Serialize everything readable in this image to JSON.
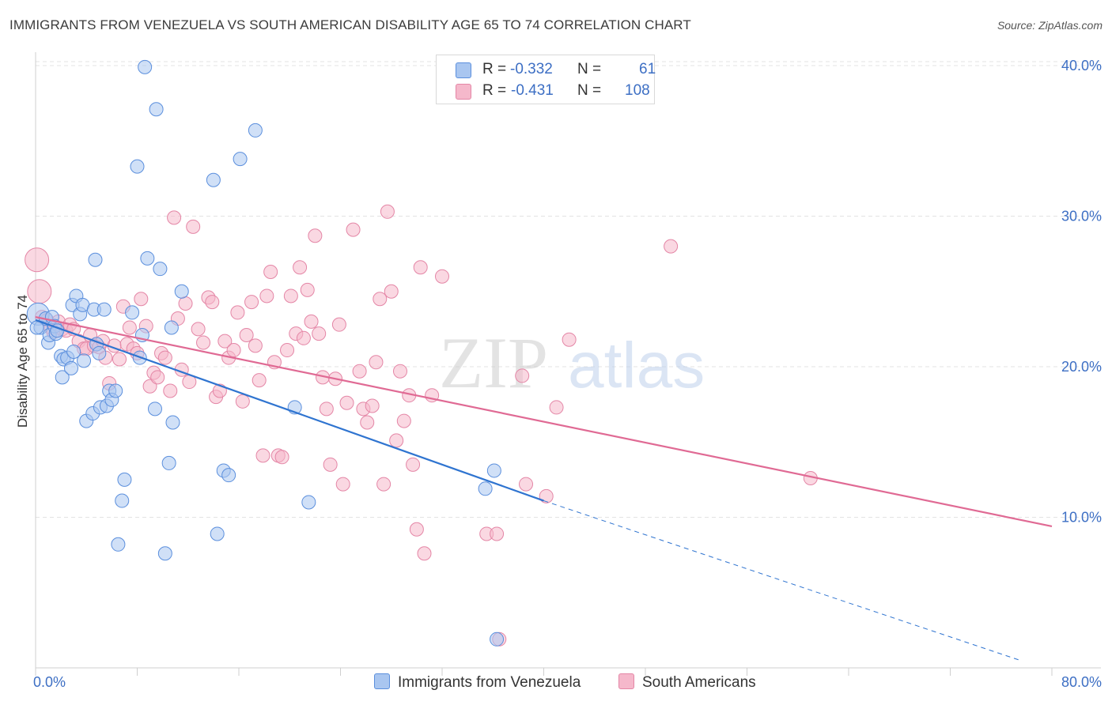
{
  "title": "IMMIGRANTS FROM VENEZUELA VS SOUTH AMERICAN DISABILITY AGE 65 TO 74 CORRELATION CHART",
  "source": "Source: ZipAtlas.com",
  "watermark": {
    "zip": "ZIP",
    "atlas": "atlas"
  },
  "legend": {
    "series1": {
      "r_label": "R =",
      "r_value": "-0.332",
      "n_label": "N =",
      "n_value": "61"
    },
    "series2": {
      "r_label": "R =",
      "r_value": "-0.431",
      "n_label": "N =",
      "n_value": "108"
    }
  },
  "colors": {
    "blue_fill": "#a9c6f0",
    "blue_stroke": "#5b8fdd",
    "blue_line": "#2f74d0",
    "pink_fill": "#f5b8cb",
    "pink_stroke": "#e486a6",
    "pink_line": "#e06a94"
  },
  "chart_data": {
    "type": "scatter",
    "title": "IMMIGRANTS FROM VENEZUELA VS SOUTH AMERICAN DISABILITY AGE 65 TO 74 CORRELATION CHART",
    "xlabel": "",
    "ylabel": "Disability Age 65 to 74",
    "xlim": [
      0,
      80
    ],
    "ylim": [
      0,
      42
    ],
    "x_ticks": [
      "0.0%",
      "80.0%"
    ],
    "y_ticks": [
      {
        "value": 10,
        "label": "10.0%"
      },
      {
        "value": 20,
        "label": "20.0%"
      },
      {
        "value": 30,
        "label": "30.0%"
      },
      {
        "value": 40,
        "label": "40.0%"
      }
    ],
    "grid": true,
    "series": [
      {
        "name": "Immigrants from Venezuela",
        "color": "#5b8fdd",
        "points": [
          [
            0.2,
            23.5
          ],
          [
            0.4,
            22.6
          ],
          [
            0.8,
            23.2
          ],
          [
            1.0,
            21.6
          ],
          [
            1.1,
            22.1
          ],
          [
            1.3,
            23.3
          ],
          [
            1.5,
            22.7
          ],
          [
            1.6,
            22.2
          ],
          [
            1.7,
            22.4
          ],
          [
            2.0,
            20.7
          ],
          [
            2.1,
            19.3
          ],
          [
            2.2,
            20.5
          ],
          [
            2.5,
            20.6
          ],
          [
            2.8,
            19.9
          ],
          [
            2.9,
            24.1
          ],
          [
            3.0,
            21.0
          ],
          [
            3.2,
            24.7
          ],
          [
            3.5,
            23.5
          ],
          [
            3.7,
            24.1
          ],
          [
            3.8,
            20.4
          ],
          [
            4.0,
            16.4
          ],
          [
            4.5,
            16.9
          ],
          [
            4.6,
            23.8
          ],
          [
            4.7,
            27.1
          ],
          [
            4.8,
            21.5
          ],
          [
            5.0,
            20.9
          ],
          [
            5.1,
            17.3
          ],
          [
            5.4,
            23.8
          ],
          [
            5.6,
            17.4
          ],
          [
            5.8,
            18.4
          ],
          [
            6.0,
            17.8
          ],
          [
            6.3,
            18.4
          ],
          [
            6.5,
            8.2
          ],
          [
            6.8,
            11.1
          ],
          [
            7.0,
            12.5
          ],
          [
            7.6,
            23.6
          ],
          [
            8.0,
            33.3
          ],
          [
            8.2,
            20.6
          ],
          [
            8.4,
            22.1
          ],
          [
            8.6,
            39.9
          ],
          [
            8.8,
            27.2
          ],
          [
            9.4,
            17.2
          ],
          [
            9.5,
            37.1
          ],
          [
            9.8,
            26.5
          ],
          [
            10.2,
            7.6
          ],
          [
            10.5,
            13.6
          ],
          [
            10.7,
            22.6
          ],
          [
            10.8,
            16.3
          ],
          [
            11.5,
            25.0
          ],
          [
            14.0,
            32.4
          ],
          [
            14.3,
            8.9
          ],
          [
            14.8,
            13.1
          ],
          [
            15.2,
            12.8
          ],
          [
            16.1,
            33.8
          ],
          [
            17.3,
            35.7
          ],
          [
            20.4,
            17.3
          ],
          [
            21.5,
            11.0
          ],
          [
            35.4,
            11.9
          ],
          [
            36.1,
            13.1
          ],
          [
            36.3,
            1.9
          ],
          [
            0.1,
            22.6
          ]
        ],
        "trend": {
          "x_start": 0,
          "y_start": 23.1,
          "x_end": 40,
          "y_end": 11.1,
          "dashed_to_x": 77.5,
          "dashed_to_y": 0.5
        }
      },
      {
        "name": "South Americans",
        "color": "#e486a6",
        "points": [
          [
            0.1,
            27.1
          ],
          [
            0.3,
            25.0
          ],
          [
            0.5,
            23.3
          ],
          [
            0.9,
            23.1
          ],
          [
            1.2,
            22.6
          ],
          [
            1.4,
            22.3
          ],
          [
            1.8,
            23.0
          ],
          [
            2.1,
            22.5
          ],
          [
            2.4,
            22.4
          ],
          [
            2.7,
            22.8
          ],
          [
            3.0,
            22.5
          ],
          [
            3.4,
            21.7
          ],
          [
            3.8,
            21.2
          ],
          [
            4.0,
            21.2
          ],
          [
            4.3,
            22.1
          ],
          [
            4.6,
            21.4
          ],
          [
            5.0,
            21.3
          ],
          [
            5.3,
            21.7
          ],
          [
            5.5,
            20.6
          ],
          [
            5.8,
            18.9
          ],
          [
            6.2,
            21.4
          ],
          [
            6.6,
            20.5
          ],
          [
            6.9,
            24.0
          ],
          [
            7.2,
            21.5
          ],
          [
            7.4,
            22.6
          ],
          [
            7.7,
            21.2
          ],
          [
            8.0,
            20.9
          ],
          [
            8.3,
            24.5
          ],
          [
            8.7,
            22.7
          ],
          [
            9.0,
            18.7
          ],
          [
            9.3,
            19.6
          ],
          [
            9.6,
            19.3
          ],
          [
            9.9,
            20.9
          ],
          [
            10.2,
            20.6
          ],
          [
            10.6,
            18.4
          ],
          [
            10.9,
            29.9
          ],
          [
            11.2,
            23.2
          ],
          [
            11.5,
            19.8
          ],
          [
            11.8,
            24.2
          ],
          [
            12.1,
            19.0
          ],
          [
            12.4,
            29.3
          ],
          [
            12.8,
            22.5
          ],
          [
            13.2,
            21.6
          ],
          [
            13.6,
            24.6
          ],
          [
            13.9,
            24.3
          ],
          [
            14.2,
            18.0
          ],
          [
            14.5,
            18.4
          ],
          [
            14.9,
            21.7
          ],
          [
            15.2,
            20.6
          ],
          [
            15.6,
            21.1
          ],
          [
            15.9,
            23.6
          ],
          [
            16.3,
            17.7
          ],
          [
            16.6,
            22.1
          ],
          [
            17.0,
            24.3
          ],
          [
            17.3,
            21.4
          ],
          [
            17.6,
            19.1
          ],
          [
            17.9,
            14.1
          ],
          [
            18.2,
            24.7
          ],
          [
            18.5,
            26.3
          ],
          [
            18.8,
            20.3
          ],
          [
            19.1,
            14.1
          ],
          [
            19.4,
            14.0
          ],
          [
            19.8,
            21.1
          ],
          [
            20.1,
            24.7
          ],
          [
            20.5,
            22.2
          ],
          [
            20.8,
            26.6
          ],
          [
            21.1,
            21.9
          ],
          [
            21.4,
            25.1
          ],
          [
            21.7,
            23.0
          ],
          [
            22.0,
            28.7
          ],
          [
            22.3,
            22.2
          ],
          [
            22.6,
            19.3
          ],
          [
            22.9,
            17.2
          ],
          [
            23.2,
            13.5
          ],
          [
            23.6,
            19.2
          ],
          [
            23.9,
            22.8
          ],
          [
            24.2,
            12.2
          ],
          [
            24.5,
            17.6
          ],
          [
            25.0,
            29.1
          ],
          [
            25.5,
            19.7
          ],
          [
            25.8,
            17.2
          ],
          [
            26.1,
            16.3
          ],
          [
            26.5,
            17.4
          ],
          [
            26.8,
            20.3
          ],
          [
            27.1,
            24.5
          ],
          [
            27.4,
            12.2
          ],
          [
            27.7,
            30.3
          ],
          [
            28.0,
            25.0
          ],
          [
            28.4,
            15.1
          ],
          [
            28.7,
            19.7
          ],
          [
            29.0,
            16.4
          ],
          [
            29.4,
            18.1
          ],
          [
            29.7,
            13.5
          ],
          [
            30.0,
            9.2
          ],
          [
            30.3,
            26.6
          ],
          [
            30.6,
            7.6
          ],
          [
            31.2,
            18.1
          ],
          [
            32.0,
            26.0
          ],
          [
            35.5,
            8.9
          ],
          [
            36.3,
            8.9
          ],
          [
            36.5,
            1.9
          ],
          [
            38.3,
            19.4
          ],
          [
            38.6,
            12.2
          ],
          [
            40.2,
            11.4
          ],
          [
            41.0,
            17.3
          ],
          [
            42.0,
            21.8
          ],
          [
            50.0,
            28.0
          ],
          [
            61.0,
            12.6
          ]
        ],
        "trend": {
          "x_start": 0,
          "y_start": 23.3,
          "x_end": 80,
          "y_end": 9.4
        }
      }
    ]
  },
  "bottom_legend": {
    "series1": "Immigrants from Venezuela",
    "series2": "South Americans"
  }
}
